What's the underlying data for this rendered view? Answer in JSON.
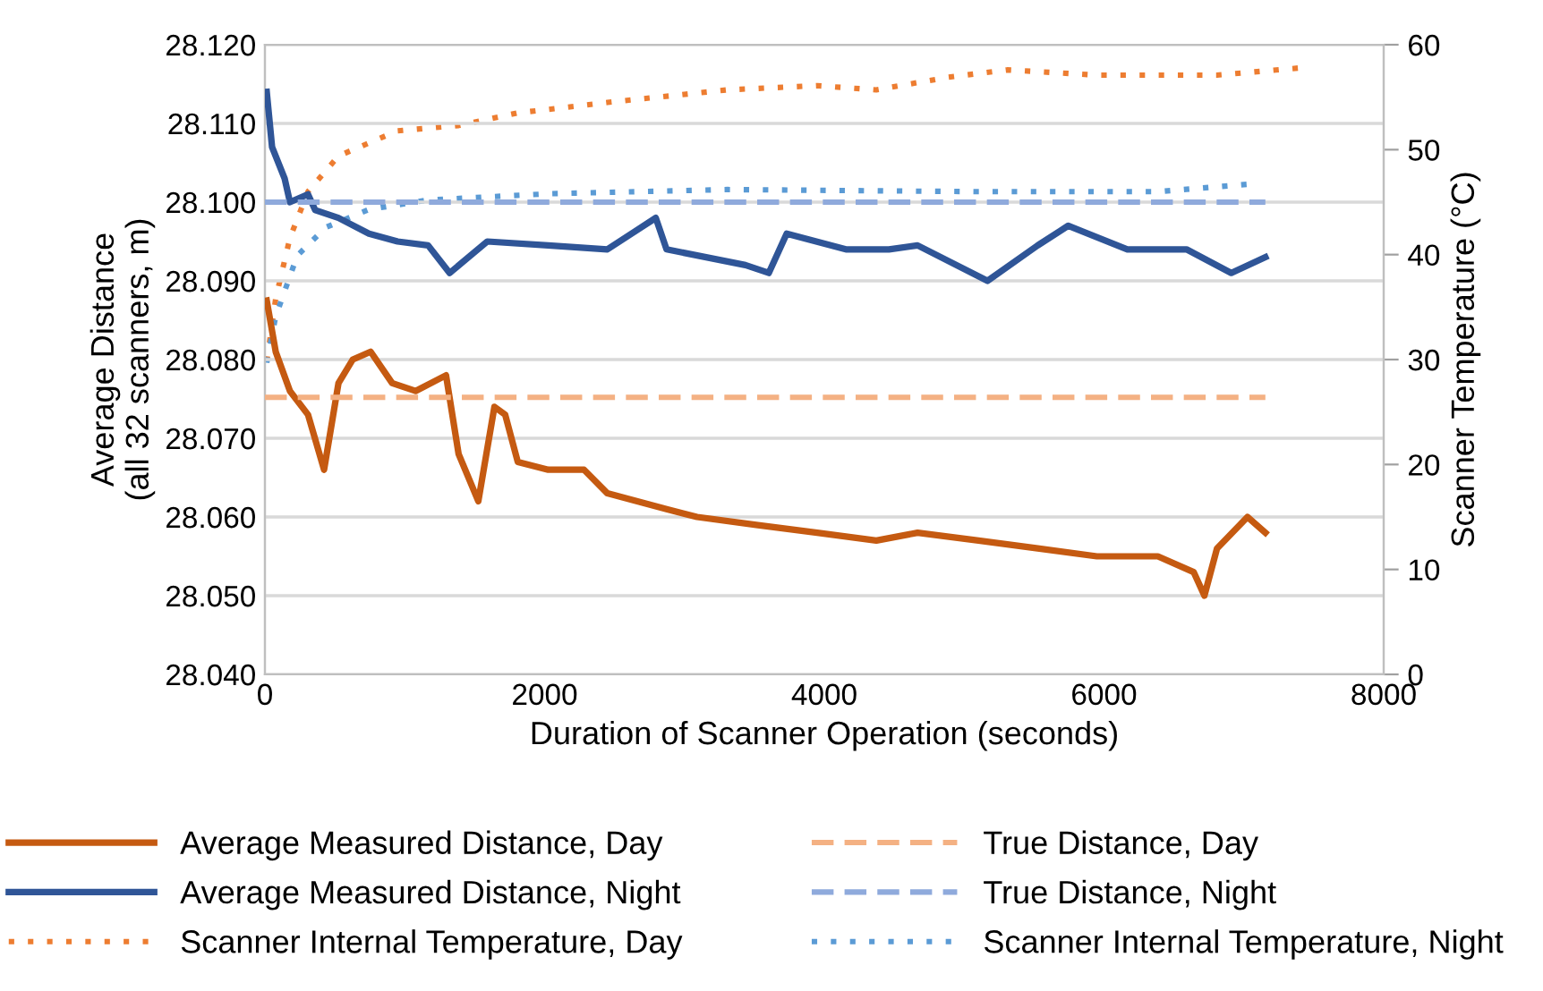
{
  "chart_data": {
    "type": "line",
    "xlabel": "Duration of Scanner Operation (seconds)",
    "ylabel": "Average Distance\n(all 32 scanners, m)",
    "y2label": "Scanner Temperature (°C)",
    "xlim": [
      0,
      8000
    ],
    "xticks": [
      0,
      2000,
      4000,
      6000,
      8000
    ],
    "ylim": [
      28.04,
      28.12
    ],
    "yticks": [
      {
        "value": 28.04,
        "label": "28.040"
      },
      {
        "value": 28.05,
        "label": "28.050"
      },
      {
        "value": 28.06,
        "label": "28.060"
      },
      {
        "value": 28.07,
        "label": "28.070"
      },
      {
        "value": 28.08,
        "label": "28.080"
      },
      {
        "value": 28.09,
        "label": "28.090"
      },
      {
        "value": 28.1,
        "label": "28.100"
      },
      {
        "value": 28.11,
        "label": "28.110"
      },
      {
        "value": 28.12,
        "label": "28.120"
      }
    ],
    "y2lim": [
      0,
      60
    ],
    "y2ticks": [
      0,
      10,
      20,
      30,
      40,
      50,
      60
    ],
    "grid": "y",
    "legend": "bottom",
    "marker": "none",
    "series": [
      {
        "name": "Average Measured Distance, Day",
        "color": "#c55a11",
        "line_style": "solid",
        "x": [
          13,
          77,
          179,
          308,
          423,
          526,
          628,
          756,
          910,
          1077,
          1295,
          1385,
          1526,
          1641,
          1718,
          1808,
          2026,
          2282,
          2449,
          2872,
          3090,
          3513,
          3949,
          4372,
          4667,
          5103,
          5526,
          5949,
          6385,
          6641,
          6718,
          6808,
          7026,
          7154
        ],
        "values": [
          28.0875,
          28.081,
          28.076,
          28.073,
          28.066,
          28.077,
          28.08,
          28.081,
          28.077,
          28.076,
          28.078,
          28.068,
          28.062,
          28.074,
          28.073,
          28.067,
          28.066,
          28.066,
          28.063,
          28.061,
          28.06,
          28.059,
          28.058,
          28.057,
          28.058,
          28.057,
          28.056,
          28.055,
          28.055,
          28.053,
          28.05,
          28.056,
          28.06,
          28.058
        ]
      },
      {
        "name": "True Distance, Day",
        "color": "#f4b183",
        "line_style": "dashed",
        "x": [
          0,
          7154
        ],
        "values": [
          28.0752,
          28.0752
        ]
      },
      {
        "name": "Average Measured Distance, Night",
        "color": "#2f5597",
        "line_style": "solid",
        "x": [
          13,
          51,
          141,
          179,
          308,
          359,
          526,
          744,
          949,
          1167,
          1321,
          1590,
          2026,
          2449,
          2795,
          2872,
          3436,
          3603,
          3731,
          4154,
          4462,
          4667,
          5167,
          5526,
          5744,
          6167,
          6590,
          6910,
          7154
        ],
        "values": [
          28.114,
          28.107,
          28.103,
          28.1,
          28.101,
          28.099,
          28.098,
          28.096,
          28.095,
          28.0945,
          28.091,
          28.095,
          28.0945,
          28.094,
          28.098,
          28.094,
          28.092,
          28.091,
          28.096,
          28.094,
          28.094,
          28.0945,
          28.09,
          28.0945,
          28.097,
          28.094,
          28.094,
          28.091,
          28.093
        ]
      },
      {
        "name": "True Distance, Night",
        "color": "#8faadc",
        "line_style": "dashed",
        "x": [
          0,
          7154
        ],
        "values": [
          28.1,
          28.1
        ]
      },
      {
        "name": "Scanner Internal Temperature, Day",
        "color": "#ed7d31",
        "line_style": "dotted",
        "axis": "y2",
        "x": [
          13,
          77,
          179,
          308,
          526,
          949,
          1385,
          1808,
          2449,
          3308,
          3949,
          4372,
          4885,
          5308,
          5949,
          6808,
          7410
        ],
        "values": [
          29.8,
          35.8,
          41.6,
          46.0,
          49.4,
          51.8,
          52.3,
          53.5,
          54.5,
          55.7,
          56.1,
          55.7,
          56.9,
          57.6,
          57.1,
          57.1,
          57.8
        ]
      },
      {
        "name": "Scanner Internal Temperature, Night",
        "color": "#5b9bd5",
        "line_style": "dotted",
        "axis": "y2",
        "x": [
          13,
          77,
          231,
          436,
          744,
          1167,
          2026,
          3308,
          5103,
          6385,
          7026
        ],
        "values": [
          29.7,
          34.1,
          39.9,
          42.6,
          44.3,
          45.2,
          45.8,
          46.2,
          46.0,
          46.0,
          46.7
        ]
      }
    ]
  }
}
